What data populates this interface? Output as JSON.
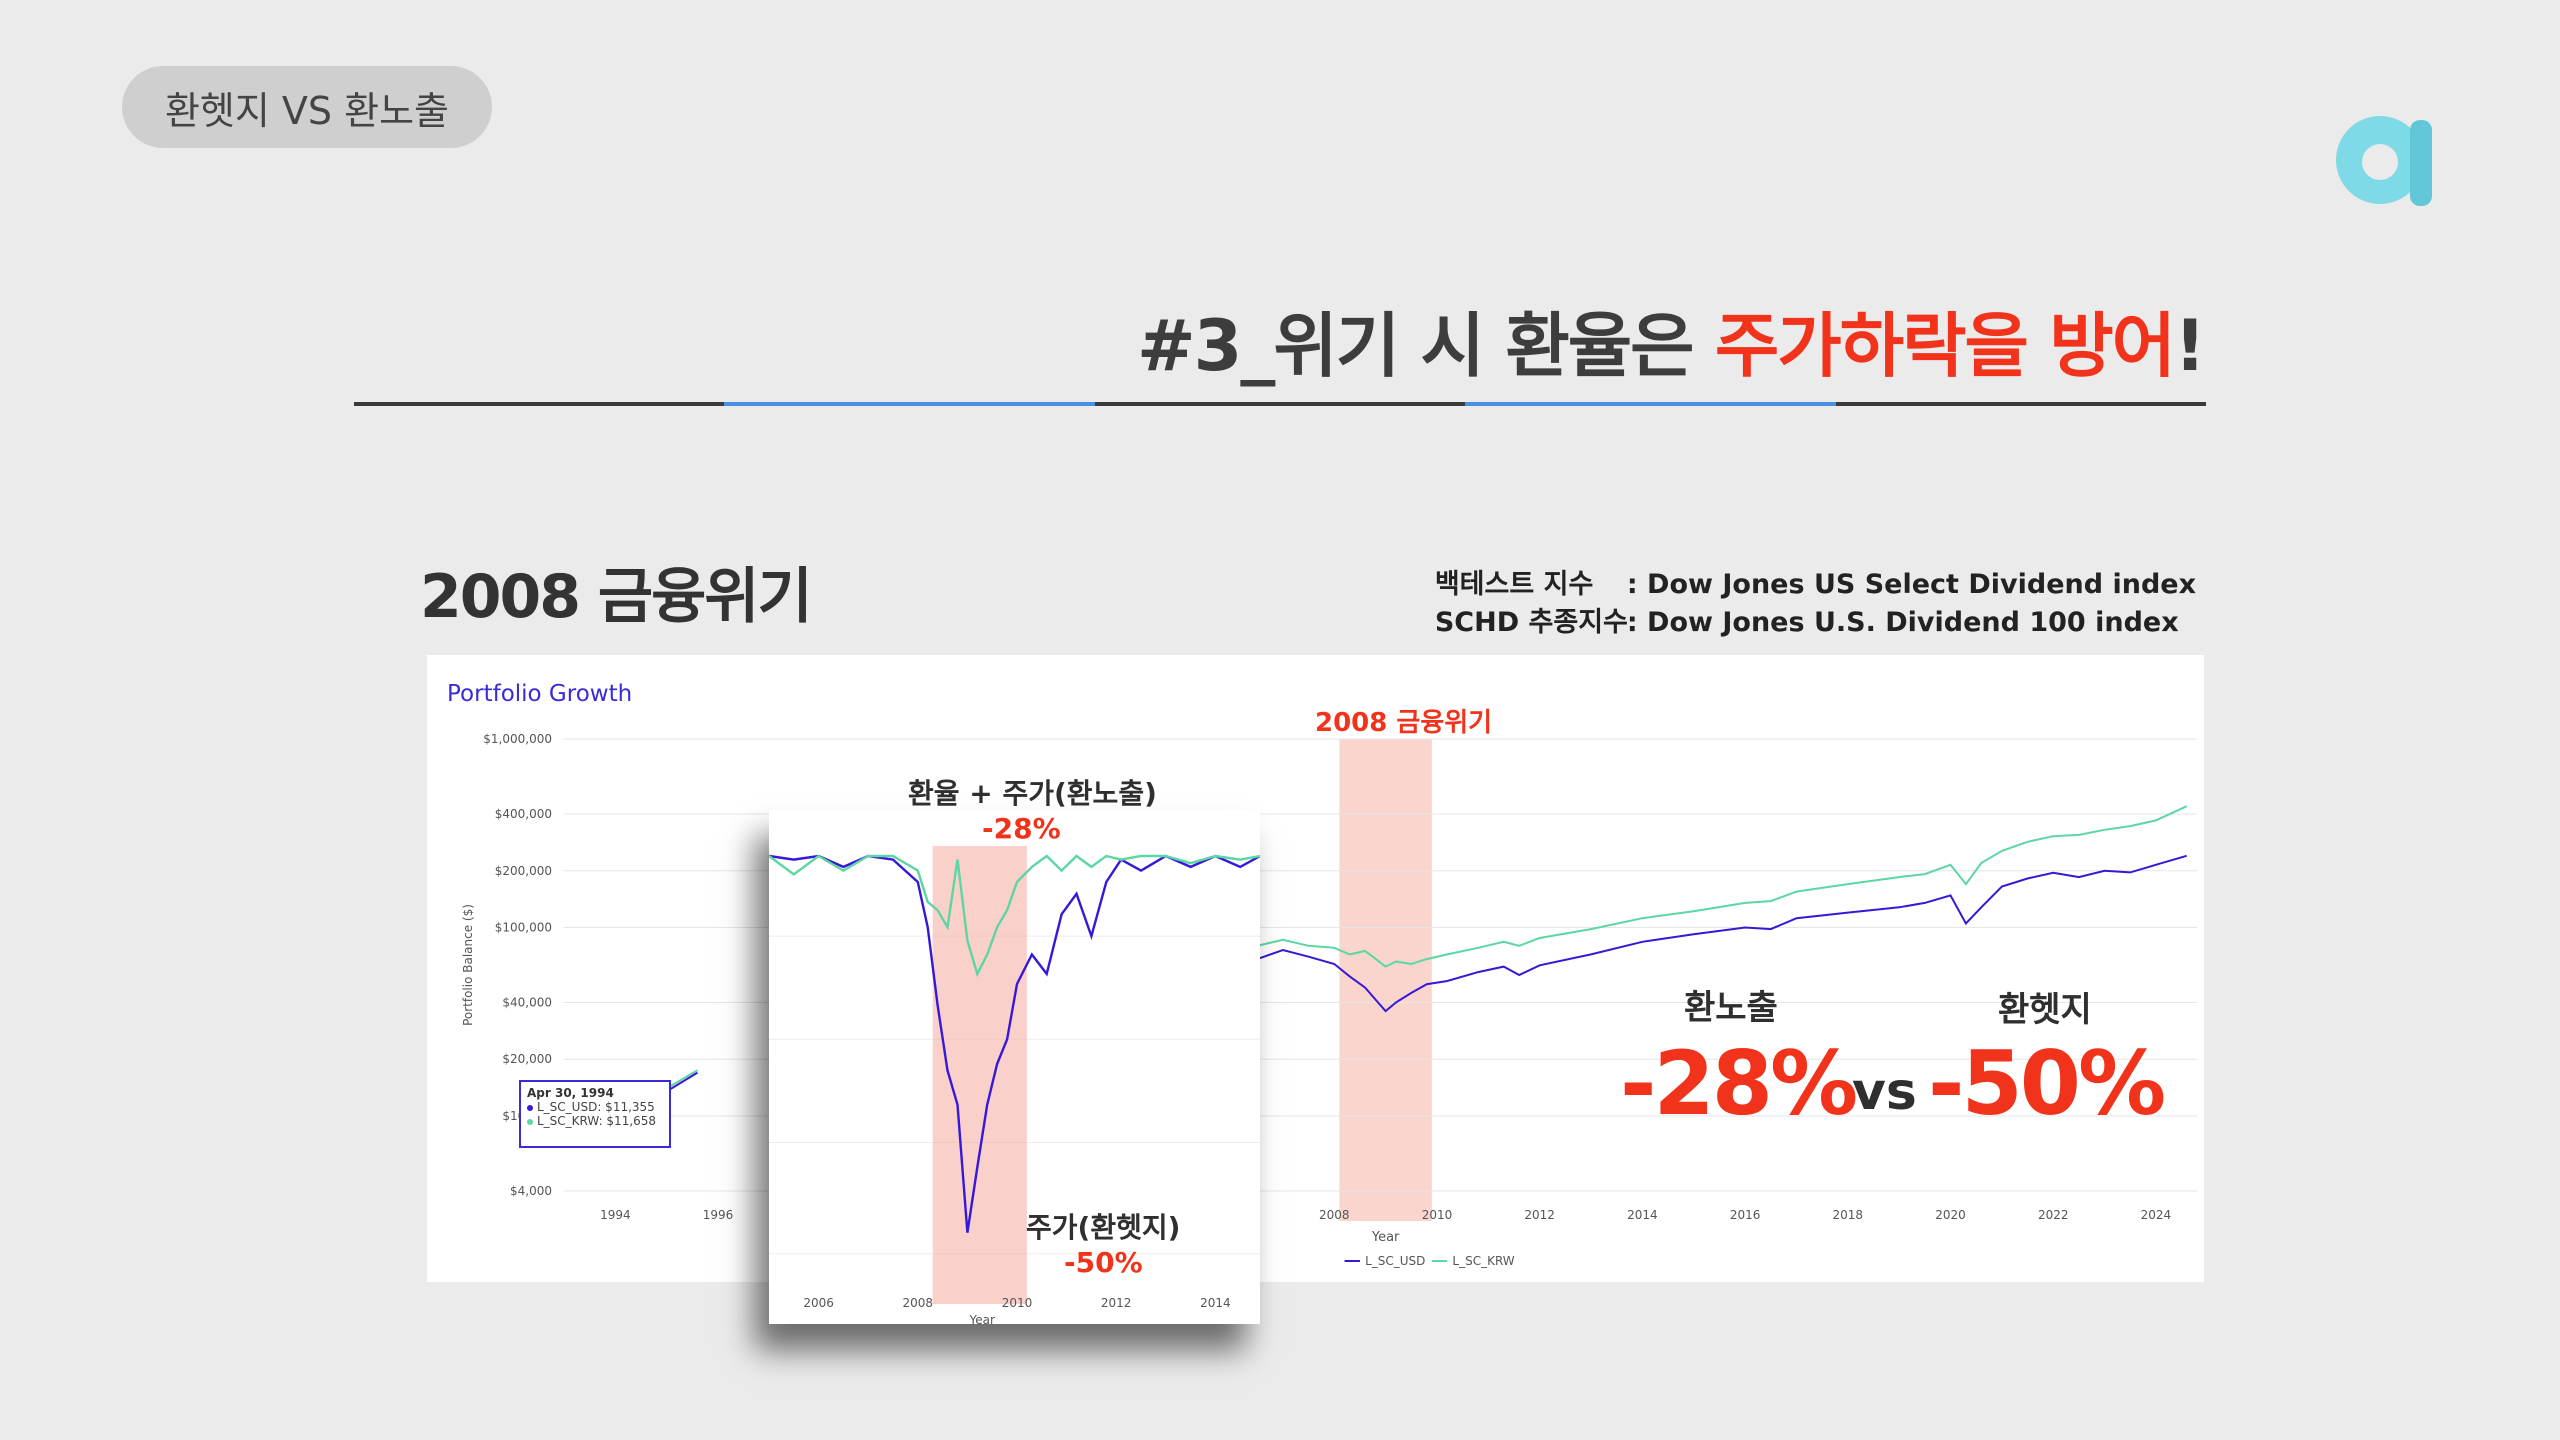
{
  "header": {
    "tag": "환헷지 VS 환노출"
  },
  "title": {
    "prefix": "#3_위기 시 환율은 ",
    "highlight": "주가하락을 방어",
    "suffix": "!"
  },
  "section": {
    "title": "2008 금융위기"
  },
  "meta": {
    "row1_key": "백테스트 지수",
    "row1_value": ": Dow Jones US Select Dividend index",
    "row2_key": "SCHD 추종지수",
    "row2_value": ": Dow Jones U.S. Dividend 100 index"
  },
  "chart": {
    "card_title": "Portfolio Growth",
    "crisis_label": "2008 금융위기",
    "y_axis_label": "Portfolio Balance ($)",
    "x_axis_label": "Year",
    "tooltip": {
      "date": "Apr 30, 1994",
      "usd": "L_SC_USD: $11,355",
      "krw": "L_SC_KRW: $11,658"
    },
    "legend": {
      "usd": "L_SC_USD",
      "krw": "L_SC_KRW"
    }
  },
  "zoom": {
    "label_exposed": "환율 + 주가(환노출)",
    "value_exposed": "-28%",
    "label_hedged": "주가(환헷지)",
    "value_hedged": "-50%",
    "x_axis_label": "Year"
  },
  "compare": {
    "label_exposed": "환노출",
    "label_hedged": "환헷지",
    "value_exposed": "-28%",
    "vs": "vs",
    "value_hedged": "-50%"
  },
  "chart_data": [
    {
      "type": "line",
      "title": "Portfolio Growth",
      "xlabel": "Year",
      "ylabel": "Portfolio Balance ($)",
      "yscale": "log",
      "ylim": [
        4000,
        1000000
      ],
      "xlim": [
        1993,
        2024.8
      ],
      "y_ticks": [
        4000,
        10000,
        20000,
        40000,
        100000,
        200000,
        400000,
        1000000
      ],
      "y_tick_labels": [
        "$4,000",
        "$10,000",
        "$20,000",
        "$40,000",
        "$100,000",
        "$200,000",
        "$400,000",
        "$1,000,000"
      ],
      "x_ticks": [
        1994,
        1996,
        2008,
        2010,
        2012,
        2014,
        2016,
        2018,
        2020,
        2022,
        2024
      ],
      "highlight_range": [
        2008.1,
        2009.9
      ],
      "legend_position": "bottom",
      "series": [
        {
          "name": "L_SC_USD",
          "color": "#3518d8",
          "x": [
            1993.5,
            1994.33,
            1995,
            1995.6,
            2005.4,
            2006,
            2006.5,
            2007,
            2007.5,
            2008,
            2008.3,
            2008.6,
            2009.0,
            2009.2,
            2009.5,
            2009.8,
            2010.2,
            2010.8,
            2011.3,
            2011.6,
            2012,
            2013,
            2014,
            2015,
            2016,
            2016.5,
            2017,
            2018,
            2019,
            2019.5,
            2020,
            2020.3,
            2020.6,
            2021,
            2021.5,
            2022,
            2022.5,
            2023,
            2023.5,
            2024,
            2024.6
          ],
          "y": [
            9800,
            11355,
            13500,
            17000,
            70000,
            72000,
            68000,
            76000,
            70000,
            64000,
            55000,
            48000,
            36000,
            40000,
            45000,
            50000,
            52000,
            58000,
            62000,
            56000,
            63000,
            72000,
            84000,
            92000,
            100000,
            98000,
            112000,
            120000,
            128000,
            135000,
            148000,
            105000,
            128000,
            165000,
            182000,
            195000,
            185000,
            200000,
            196000,
            215000,
            240000
          ]
        },
        {
          "name": "L_SC_KRW",
          "color": "#5cd6a3",
          "x": [
            1993.5,
            1994.33,
            1995,
            1995.6,
            2005.4,
            2006,
            2006.5,
            2007,
            2007.5,
            2008,
            2008.3,
            2008.6,
            2009.0,
            2009.2,
            2009.5,
            2009.8,
            2010.2,
            2010.8,
            2011.3,
            2011.6,
            2012,
            2013,
            2014,
            2015,
            2016,
            2016.5,
            2017,
            2018,
            2019,
            2019.5,
            2020,
            2020.3,
            2020.6,
            2021,
            2021.5,
            2022,
            2022.5,
            2023,
            2023.5,
            2024,
            2024.6
          ],
          "y": [
            10000,
            11658,
            14000,
            17500,
            80000,
            84000,
            80000,
            86000,
            80000,
            78000,
            72000,
            75000,
            62000,
            66000,
            64000,
            68000,
            72000,
            78000,
            84000,
            80000,
            88000,
            98000,
            112000,
            122000,
            135000,
            138000,
            155000,
            170000,
            185000,
            192000,
            215000,
            170000,
            220000,
            255000,
            285000,
            305000,
            310000,
            330000,
            345000,
            370000,
            440000
          ]
        }
      ]
    },
    {
      "type": "line",
      "title": "",
      "xlabel": "Year",
      "yscale": "log",
      "xlim": [
        2005.0,
        2014.9
      ],
      "x_ticks": [
        2006,
        2008,
        2010,
        2012,
        2014
      ],
      "highlight_range": [
        2008.3,
        2010.2
      ],
      "annotations": [
        "환율 + 주가(환노출) -28%",
        "주가(환헷지) -50%"
      ],
      "series": [
        {
          "name": "L_SC_USD",
          "color": "#3518d8",
          "x": [
            2005.0,
            2005.5,
            2006.0,
            2006.5,
            2007.0,
            2007.5,
            2008.0,
            2008.2,
            2008.4,
            2008.6,
            2008.8,
            2009.0,
            2009.2,
            2009.4,
            2009.6,
            2009.8,
            2010.0,
            2010.3,
            2010.6,
            2010.9,
            2011.2,
            2011.5,
            2011.8,
            2012.1,
            2012.5,
            2013.0,
            2013.5,
            2014.0,
            2014.5,
            2014.9
          ],
          "y": [
            1.0,
            0.99,
            1.0,
            0.97,
            1.0,
            0.99,
            0.93,
            0.82,
            0.66,
            0.55,
            0.5,
            0.35,
            0.42,
            0.5,
            0.56,
            0.6,
            0.7,
            0.76,
            0.72,
            0.85,
            0.9,
            0.8,
            0.93,
            0.99,
            0.96,
            1.0,
            0.97,
            1.0,
            0.97,
            1.0
          ]
        },
        {
          "name": "L_SC_KRW",
          "color": "#5cd6a3",
          "x": [
            2005.0,
            2005.5,
            2006.0,
            2006.5,
            2007.0,
            2007.5,
            2008.0,
            2008.2,
            2008.4,
            2008.6,
            2008.8,
            2009.0,
            2009.2,
            2009.4,
            2009.6,
            2009.8,
            2010.0,
            2010.3,
            2010.6,
            2010.9,
            2011.2,
            2011.5,
            2011.8,
            2012.1,
            2012.5,
            2013.0,
            2013.5,
            2014.0,
            2014.5,
            2014.9
          ],
          "y": [
            1.0,
            0.95,
            1.0,
            0.96,
            1.0,
            1.0,
            0.96,
            0.88,
            0.86,
            0.82,
            0.99,
            0.79,
            0.72,
            0.76,
            0.82,
            0.86,
            0.93,
            0.97,
            1.0,
            0.96,
            1.0,
            0.97,
            1.0,
            0.99,
            1.0,
            1.0,
            0.98,
            1.0,
            0.99,
            1.0
          ]
        }
      ]
    }
  ]
}
